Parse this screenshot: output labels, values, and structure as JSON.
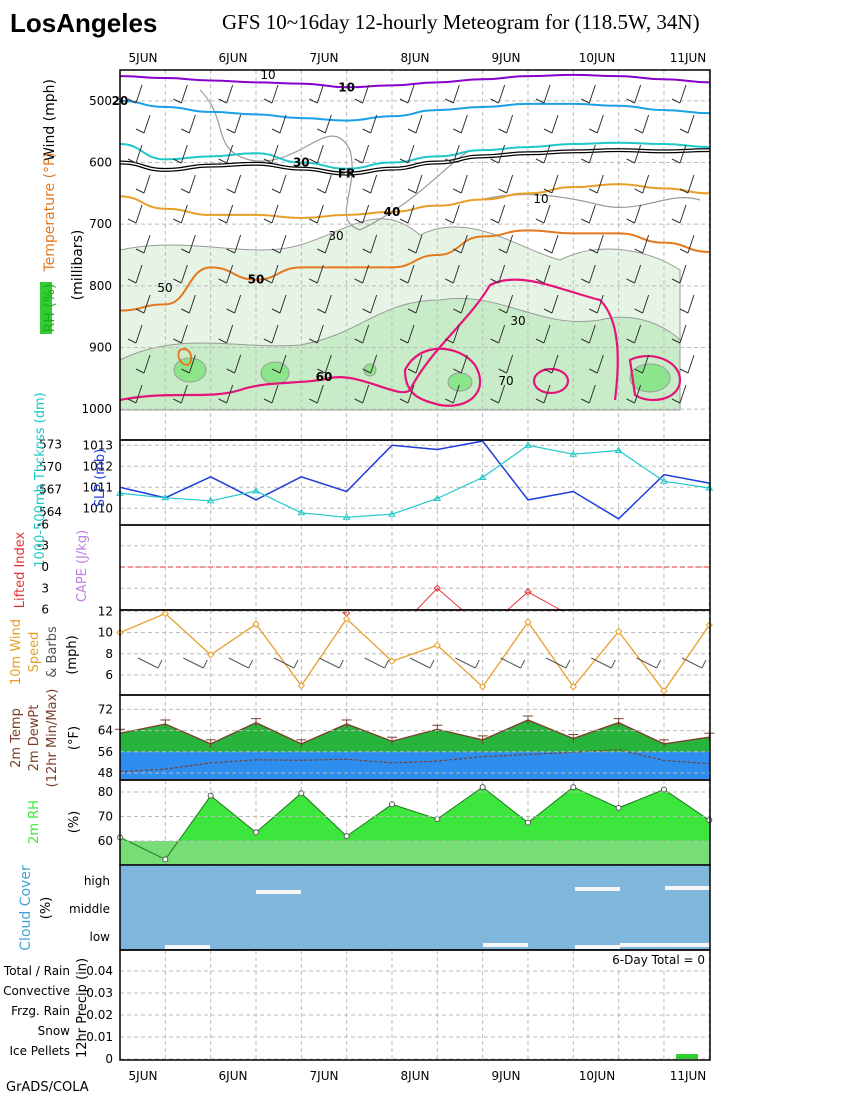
{
  "header": {
    "location": "LosAngeles",
    "title": "GFS 10~16day 12-hourly Meteogram for (118.5W, 34N)"
  },
  "footer": {
    "credit": "GrADS/COLA"
  },
  "dates": [
    "5JUN",
    "6JUN",
    "7JUN",
    "8JUN",
    "9JUN",
    "10JUN",
    "11JUN"
  ],
  "colors": {
    "rh_light": "#e6f4e6",
    "rh_mid": "#c8ecc8",
    "rh_dark": "#8be68b",
    "temp_10": "#8800cc",
    "temp_20": "#1aa0e6",
    "temp_30": "#1ec8c8",
    "temp_40": "#e6a028",
    "temp_50": "#e6781e",
    "temp_60": "#e6147a",
    "slp": "#1e3cdc",
    "thickness": "#1ec8c8",
    "li": "#e63232",
    "wind": "#e6a028",
    "temp_area": "#28b43c",
    "dew_area": "#2e8ef0",
    "rh_area": "#3ce63c",
    "cloud": "#7fb6dc"
  },
  "chart_data": [
    {
      "type": "contour",
      "panel": "upper_air",
      "ylabel": "(millibars)",
      "side_labels": [
        "Wind (mph)",
        "Temperature (°F)",
        "RH (%)"
      ],
      "y_ticks": [
        500,
        600,
        700,
        800,
        900,
        1000
      ],
      "ylim": [
        450,
        1050
      ],
      "temperature_contours": [
        {
          "label": "10",
          "p": [
            460,
            463,
            467,
            470,
            472,
            478,
            475,
            470,
            465,
            460,
            458,
            460,
            465,
            470
          ]
        },
        {
          "label": "20",
          "p": [
            500,
            510,
            518,
            522,
            528,
            532,
            525,
            515,
            510,
            505,
            505,
            508,
            515,
            520
          ]
        },
        {
          "label": "30",
          "p": [
            570,
            595,
            590,
            585,
            600,
            610,
            600,
            590,
            580,
            575,
            570,
            568,
            570,
            575
          ]
        },
        {
          "label": "FR",
          "p": [
            600,
            612,
            605,
            602,
            610,
            618,
            610,
            600,
            590,
            585,
            582,
            580,
            582,
            580
          ]
        },
        {
          "label": "40",
          "p": [
            655,
            675,
            685,
            685,
            690,
            685,
            680,
            670,
            660,
            650,
            640,
            635,
            642,
            650
          ]
        },
        {
          "label": "50",
          "p": [
            840,
            830,
            770,
            790,
            770,
            770,
            770,
            750,
            720,
            710,
            715,
            715,
            730,
            745
          ]
        }
      ],
      "rh_labels": [
        "50",
        "30",
        "70",
        "10",
        "30",
        "70"
      ]
    },
    {
      "type": "line",
      "panel": "pressure",
      "series": [
        {
          "name": "SLP (mb)",
          "values": [
            1011.0,
            1010.5,
            1011.5,
            1010.4,
            1011.5,
            1010.8,
            1013.0,
            1012.8,
            1013.2,
            1010.4,
            1010.8,
            1009.5,
            1011.6,
            1011.2
          ]
        },
        {
          "name": "1000-500mb Thcknss (dm)",
          "values": [
            566.5,
            565.9,
            565.5,
            566.8,
            563.9,
            563.3,
            563.7,
            565.8,
            568.6,
            572.9,
            571.7,
            572.2,
            568.1,
            567.2
          ]
        }
      ],
      "slp_ticks": [
        1010,
        1011,
        1012,
        1013
      ],
      "thk_ticks": [
        564,
        567,
        570,
        573
      ]
    },
    {
      "type": "line",
      "panel": "stability",
      "series": [
        {
          "name": "Lifted Index",
          "values": [
            null,
            null,
            null,
            null,
            null,
            6.5,
            null,
            3.0,
            null,
            3.5,
            null,
            null,
            null,
            null
          ]
        },
        {
          "name": "CAPE (J/kg)",
          "values": [
            0,
            0,
            0,
            0,
            0,
            0,
            0,
            0,
            0,
            0,
            0,
            0,
            0,
            0
          ]
        }
      ],
      "ticks": [
        "-6",
        "-3",
        "0",
        "3",
        "6"
      ]
    },
    {
      "type": "line",
      "panel": "wind10m",
      "ylabel": "10m Wind Speed & Barbs (mph)",
      "series": [
        {
          "name": "10m Wind Speed",
          "values": [
            10.0,
            11.8,
            7.9,
            10.8,
            5.0,
            11.3,
            7.3,
            8.8,
            4.9,
            11.0,
            4.9,
            10.1,
            4.5,
            10.7
          ]
        }
      ],
      "ticks": [
        6,
        8,
        10,
        12
      ]
    },
    {
      "type": "area",
      "panel": "temp2m",
      "ylabel": "2m Temp 2m DewPt (12hr Min/Max) (°F)",
      "series": [
        {
          "name": "2m Temp",
          "values": [
            63.0,
            66.5,
            59.0,
            67.0,
            59.0,
            66.5,
            60.0,
            64.5,
            60.5,
            68.0,
            61.0,
            67.0,
            59.0,
            61.5
          ]
        },
        {
          "name": "2m DewPt",
          "values": [
            48.5,
            49.5,
            51.8,
            53.0,
            52.8,
            53.2,
            51.8,
            52.5,
            54.2,
            55.0,
            55.8,
            56.8,
            52.7,
            51.5
          ]
        }
      ],
      "ticks": [
        48,
        56,
        64,
        72
      ]
    },
    {
      "type": "area",
      "panel": "rh2m",
      "ylabel": "2m RH (%)",
      "series": [
        {
          "name": "2m RH",
          "values": [
            61.5,
            52.5,
            78.5,
            63.5,
            79.5,
            62.0,
            75.0,
            69.0,
            82.0,
            67.5,
            82.0,
            73.5,
            81.0,
            68.5
          ]
        }
      ],
      "ticks": [
        60,
        70,
        80
      ]
    },
    {
      "type": "area",
      "panel": "cloud",
      "ylabel": "Cloud Cover (%)",
      "categories": [
        "high",
        "middle",
        "low"
      ]
    },
    {
      "type": "bar",
      "panel": "precip",
      "ylabel": "12hr Precip (in)",
      "legend": [
        "Total / Rain",
        "Convective",
        "Frzg. Rain",
        "Snow",
        "Ice Pellets"
      ],
      "annotation": "6-Day Total = 0",
      "ticks": [
        "0",
        "0.01",
        "0.02",
        "0.03",
        "0.04"
      ]
    }
  ]
}
